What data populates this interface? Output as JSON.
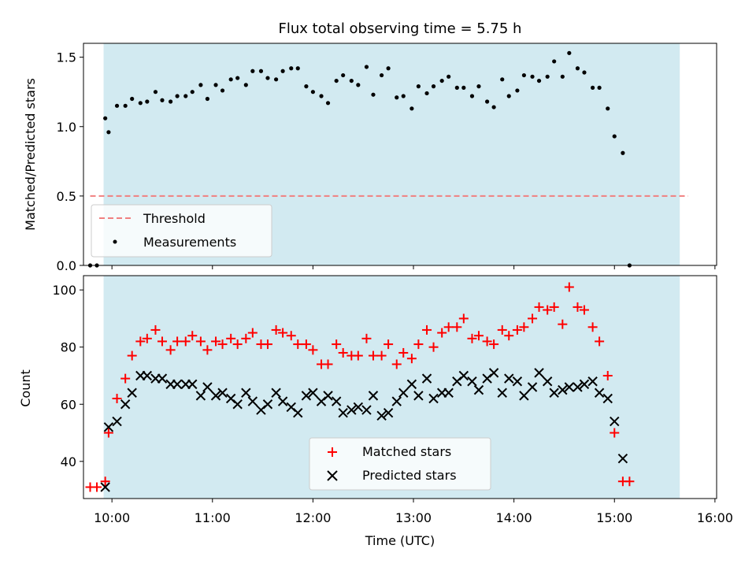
{
  "chart_data": [
    {
      "type": "scatter",
      "title": "Flux total observing time = 5.75 h",
      "xlabel": "",
      "ylabel": "Matched/Predicted stars",
      "ylim": [
        0,
        1.6
      ],
      "yticks": [
        "0.0",
        "0.5",
        "1.0",
        "1.5"
      ],
      "xlim": [
        "09:43",
        "16:01"
      ],
      "shaded_interval": [
        "09:55",
        "15:39"
      ],
      "shade_color": "#add8e6",
      "threshold": {
        "name": "Threshold",
        "y": 0.5,
        "x": [
          "09:47",
          "15:44"
        ],
        "color": "#f08080",
        "style": "dashed"
      },
      "legend_location": "lower-left",
      "series": [
        {
          "name": "Measurements",
          "color": "#000000",
          "marker": "dot",
          "points": [
            [
              "09:47",
              0.0
            ],
            [
              "09:51",
              0.0
            ],
            [
              "09:56",
              1.06
            ],
            [
              "09:58",
              0.96
            ],
            [
              "10:03",
              1.15
            ],
            [
              "10:08",
              1.15
            ],
            [
              "10:12",
              1.2
            ],
            [
              "10:17",
              1.17
            ],
            [
              "10:21",
              1.18
            ],
            [
              "10:26",
              1.25
            ],
            [
              "10:30",
              1.19
            ],
            [
              "10:35",
              1.18
            ],
            [
              "10:39",
              1.22
            ],
            [
              "10:44",
              1.22
            ],
            [
              "10:48",
              1.25
            ],
            [
              "10:53",
              1.3
            ],
            [
              "10:57",
              1.2
            ],
            [
              "11:02",
              1.3
            ],
            [
              "11:06",
              1.26
            ],
            [
              "11:11",
              1.34
            ],
            [
              "11:15",
              1.35
            ],
            [
              "11:20",
              1.3
            ],
            [
              "11:24",
              1.4
            ],
            [
              "11:29",
              1.4
            ],
            [
              "11:33",
              1.35
            ],
            [
              "11:38",
              1.34
            ],
            [
              "11:42",
              1.4
            ],
            [
              "11:47",
              1.42
            ],
            [
              "11:51",
              1.42
            ],
            [
              "11:56",
              1.29
            ],
            [
              "12:00",
              1.25
            ],
            [
              "12:05",
              1.22
            ],
            [
              "12:09",
              1.17
            ],
            [
              "12:14",
              1.33
            ],
            [
              "12:18",
              1.37
            ],
            [
              "12:23",
              1.33
            ],
            [
              "12:27",
              1.3
            ],
            [
              "12:32",
              1.43
            ],
            [
              "12:36",
              1.23
            ],
            [
              "12:41",
              1.37
            ],
            [
              "12:45",
              1.42
            ],
            [
              "12:50",
              1.21
            ],
            [
              "12:54",
              1.22
            ],
            [
              "12:59",
              1.13
            ],
            [
              "13:03",
              1.29
            ],
            [
              "13:08",
              1.24
            ],
            [
              "13:12",
              1.29
            ],
            [
              "13:17",
              1.33
            ],
            [
              "13:21",
              1.36
            ],
            [
              "13:26",
              1.28
            ],
            [
              "13:30",
              1.28
            ],
            [
              "13:35",
              1.22
            ],
            [
              "13:39",
              1.29
            ],
            [
              "13:44",
              1.18
            ],
            [
              "13:48",
              1.14
            ],
            [
              "13:53",
              1.34
            ],
            [
              "13:57",
              1.22
            ],
            [
              "14:02",
              1.26
            ],
            [
              "14:06",
              1.37
            ],
            [
              "14:11",
              1.36
            ],
            [
              "14:15",
              1.33
            ],
            [
              "14:20",
              1.36
            ],
            [
              "14:24",
              1.47
            ],
            [
              "14:29",
              1.36
            ],
            [
              "14:33",
              1.53
            ],
            [
              "14:38",
              1.42
            ],
            [
              "14:42",
              1.39
            ],
            [
              "14:47",
              1.28
            ],
            [
              "14:51",
              1.28
            ],
            [
              "14:56",
              1.13
            ],
            [
              "15:00",
              0.93
            ],
            [
              "15:05",
              0.81
            ],
            [
              "15:09",
              0.0
            ]
          ]
        }
      ]
    },
    {
      "type": "scatter",
      "title": "",
      "xlabel": "Time (UTC)",
      "ylabel": "Count",
      "ylim": [
        27,
        105
      ],
      "yticks": [
        "40",
        "60",
        "80",
        "100"
      ],
      "xlim": [
        "09:43",
        "16:01"
      ],
      "xticks": [
        "10:00",
        "11:00",
        "12:00",
        "13:00",
        "14:00",
        "15:00",
        "16:00"
      ],
      "shaded_interval": [
        "09:55",
        "15:39"
      ],
      "shade_color": "#add8e6",
      "legend_location": "lower-center",
      "series": [
        {
          "name": "Matched stars",
          "color": "#ff0000",
          "marker": "plus",
          "points": [
            [
              "09:47",
              31
            ],
            [
              "09:51",
              31
            ],
            [
              "09:56",
              33
            ],
            [
              "09:58",
              50
            ],
            [
              "10:03",
              62
            ],
            [
              "10:08",
              69
            ],
            [
              "10:12",
              77
            ],
            [
              "10:17",
              82
            ],
            [
              "10:21",
              83
            ],
            [
              "10:26",
              86
            ],
            [
              "10:30",
              82
            ],
            [
              "10:35",
              79
            ],
            [
              "10:39",
              82
            ],
            [
              "10:44",
              82
            ],
            [
              "10:48",
              84
            ],
            [
              "10:53",
              82
            ],
            [
              "10:57",
              79
            ],
            [
              "11:02",
              82
            ],
            [
              "11:06",
              81
            ],
            [
              "11:11",
              83
            ],
            [
              "11:15",
              81
            ],
            [
              "11:20",
              83
            ],
            [
              "11:24",
              85
            ],
            [
              "11:29",
              81
            ],
            [
              "11:33",
              81
            ],
            [
              "11:38",
              86
            ],
            [
              "11:42",
              85
            ],
            [
              "11:47",
              84
            ],
            [
              "11:51",
              81
            ],
            [
              "11:56",
              81
            ],
            [
              "12:00",
              79
            ],
            [
              "12:05",
              74
            ],
            [
              "12:09",
              74
            ],
            [
              "12:14",
              81
            ],
            [
              "12:18",
              78
            ],
            [
              "12:23",
              77
            ],
            [
              "12:27",
              77
            ],
            [
              "12:32",
              83
            ],
            [
              "12:36",
              77
            ],
            [
              "12:41",
              77
            ],
            [
              "12:45",
              81
            ],
            [
              "12:50",
              74
            ],
            [
              "12:54",
              78
            ],
            [
              "12:59",
              76
            ],
            [
              "13:03",
              81
            ],
            [
              "13:08",
              86
            ],
            [
              "13:12",
              80
            ],
            [
              "13:17",
              85
            ],
            [
              "13:21",
              87
            ],
            [
              "13:26",
              87
            ],
            [
              "13:30",
              90
            ],
            [
              "13:35",
              83
            ],
            [
              "13:39",
              84
            ],
            [
              "13:44",
              82
            ],
            [
              "13:48",
              81
            ],
            [
              "13:53",
              86
            ],
            [
              "13:57",
              84
            ],
            [
              "14:02",
              86
            ],
            [
              "14:06",
              87
            ],
            [
              "14:11",
              90
            ],
            [
              "14:15",
              94
            ],
            [
              "14:20",
              93
            ],
            [
              "14:24",
              94
            ],
            [
              "14:29",
              88
            ],
            [
              "14:33",
              101
            ],
            [
              "14:38",
              94
            ],
            [
              "14:42",
              93
            ],
            [
              "14:47",
              87
            ],
            [
              "14:51",
              82
            ],
            [
              "14:56",
              70
            ],
            [
              "15:00",
              50
            ],
            [
              "15:05",
              33
            ],
            [
              "15:09",
              33
            ]
          ]
        },
        {
          "name": "Predicted stars",
          "color": "#000000",
          "marker": "x",
          "points": [
            [
              "09:56",
              31
            ],
            [
              "09:58",
              52
            ],
            [
              "10:03",
              54
            ],
            [
              "10:08",
              60
            ],
            [
              "10:12",
              64
            ],
            [
              "10:17",
              70
            ],
            [
              "10:21",
              70
            ],
            [
              "10:26",
              69
            ],
            [
              "10:30",
              69
            ],
            [
              "10:35",
              67
            ],
            [
              "10:39",
              67
            ],
            [
              "10:44",
              67
            ],
            [
              "10:48",
              67
            ],
            [
              "10:53",
              63
            ],
            [
              "10:57",
              66
            ],
            [
              "11:02",
              63
            ],
            [
              "11:06",
              64
            ],
            [
              "11:11",
              62
            ],
            [
              "11:15",
              60
            ],
            [
              "11:20",
              64
            ],
            [
              "11:24",
              61
            ],
            [
              "11:29",
              58
            ],
            [
              "11:33",
              60
            ],
            [
              "11:38",
              64
            ],
            [
              "11:42",
              61
            ],
            [
              "11:47",
              59
            ],
            [
              "11:51",
              57
            ],
            [
              "11:56",
              63
            ],
            [
              "12:00",
              64
            ],
            [
              "12:05",
              61
            ],
            [
              "12:09",
              63
            ],
            [
              "12:14",
              61
            ],
            [
              "12:18",
              57
            ],
            [
              "12:23",
              58
            ],
            [
              "12:27",
              59
            ],
            [
              "12:32",
              58
            ],
            [
              "12:36",
              63
            ],
            [
              "12:41",
              56
            ],
            [
              "12:45",
              57
            ],
            [
              "12:50",
              61
            ],
            [
              "12:54",
              64
            ],
            [
              "12:59",
              67
            ],
            [
              "13:03",
              63
            ],
            [
              "13:08",
              69
            ],
            [
              "13:12",
              62
            ],
            [
              "13:17",
              64
            ],
            [
              "13:21",
              64
            ],
            [
              "13:26",
              68
            ],
            [
              "13:30",
              70
            ],
            [
              "13:35",
              68
            ],
            [
              "13:39",
              65
            ],
            [
              "13:44",
              69
            ],
            [
              "13:48",
              71
            ],
            [
              "13:53",
              64
            ],
            [
              "13:57",
              69
            ],
            [
              "14:02",
              68
            ],
            [
              "14:06",
              63
            ],
            [
              "14:11",
              66
            ],
            [
              "14:15",
              71
            ],
            [
              "14:20",
              68
            ],
            [
              "14:24",
              64
            ],
            [
              "14:29",
              65
            ],
            [
              "14:33",
              66
            ],
            [
              "14:38",
              66
            ],
            [
              "14:42",
              67
            ],
            [
              "14:47",
              68
            ],
            [
              "14:51",
              64
            ],
            [
              "14:56",
              62
            ],
            [
              "15:00",
              54
            ],
            [
              "15:05",
              41
            ]
          ]
        }
      ]
    }
  ]
}
